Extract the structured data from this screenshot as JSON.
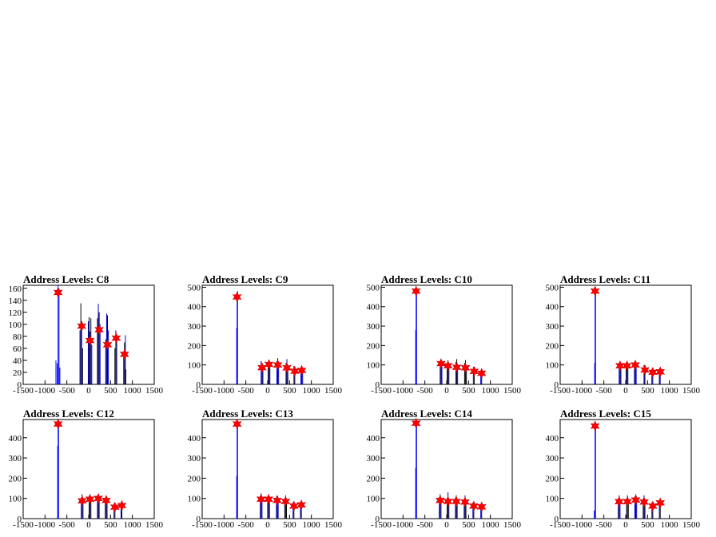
{
  "chart_data": [
    {
      "type": "histogram",
      "title": "Address Levels: C8",
      "xlim": [
        -1500,
        1500
      ],
      "ylim": [
        0,
        165
      ],
      "xticks": [
        "-1500",
        "-1000",
        "-500",
        "0",
        "500",
        "1000",
        "1500"
      ],
      "yticks": [
        "0",
        "20",
        "40",
        "60",
        "80",
        "100",
        "120",
        "140",
        "160"
      ],
      "peaks": [
        {
          "x": -700,
          "y": 153
        },
        {
          "x": -160,
          "y": 97
        },
        {
          "x": 30,
          "y": 73
        },
        {
          "x": 240,
          "y": 91
        },
        {
          "x": 430,
          "y": 66
        },
        {
          "x": 630,
          "y": 77
        },
        {
          "x": 820,
          "y": 50
        }
      ],
      "bars": [
        {
          "x": -750,
          "y": 40
        },
        {
          "x": -720,
          "y": 35
        },
        {
          "x": -700,
          "y": 165
        },
        {
          "x": -680,
          "y": 160
        },
        {
          "x": -660,
          "y": 28
        },
        {
          "x": -200,
          "y": 90
        },
        {
          "x": -180,
          "y": 135
        },
        {
          "x": -160,
          "y": 105
        },
        {
          "x": -140,
          "y": 60
        },
        {
          "x": -10,
          "y": 105
        },
        {
          "x": 10,
          "y": 112
        },
        {
          "x": 30,
          "y": 88
        },
        {
          "x": 50,
          "y": 110
        },
        {
          "x": 70,
          "y": 66
        },
        {
          "x": 200,
          "y": 110
        },
        {
          "x": 220,
          "y": 134
        },
        {
          "x": 240,
          "y": 120
        },
        {
          "x": 260,
          "y": 100
        },
        {
          "x": 390,
          "y": 75
        },
        {
          "x": 410,
          "y": 118
        },
        {
          "x": 430,
          "y": 115
        },
        {
          "x": 450,
          "y": 90
        },
        {
          "x": 600,
          "y": 60
        },
        {
          "x": 620,
          "y": 90
        },
        {
          "x": 640,
          "y": 72
        },
        {
          "x": 800,
          "y": 45
        },
        {
          "x": 820,
          "y": 70
        },
        {
          "x": 840,
          "y": 82
        },
        {
          "x": 850,
          "y": 25
        }
      ]
    },
    {
      "type": "histogram",
      "title": "Address Levels: C9",
      "xlim": [
        -1500,
        1500
      ],
      "ylim": [
        0,
        510
      ],
      "xticks": [
        "-1500",
        "-1000",
        "-500",
        "0",
        "500",
        "1000",
        "1500"
      ],
      "yticks": [
        "0",
        "100",
        "200",
        "300",
        "400",
        "500"
      ],
      "peaks": [
        {
          "x": -700,
          "y": 450
        },
        {
          "x": -130,
          "y": 86
        },
        {
          "x": 30,
          "y": 103
        },
        {
          "x": 230,
          "y": 100
        },
        {
          "x": 440,
          "y": 85
        },
        {
          "x": 620,
          "y": 68
        },
        {
          "x": 780,
          "y": 72
        }
      ],
      "bars": [
        {
          "x": -710,
          "y": 290
        },
        {
          "x": -700,
          "y": 470
        },
        {
          "x": -690,
          "y": 480
        },
        {
          "x": -150,
          "y": 120
        },
        {
          "x": -130,
          "y": 110
        },
        {
          "x": -110,
          "y": 80
        },
        {
          "x": 10,
          "y": 100
        },
        {
          "x": 30,
          "y": 125
        },
        {
          "x": 50,
          "y": 110
        },
        {
          "x": 210,
          "y": 120
        },
        {
          "x": 230,
          "y": 135
        },
        {
          "x": 250,
          "y": 100
        },
        {
          "x": 420,
          "y": 110
        },
        {
          "x": 440,
          "y": 130
        },
        {
          "x": 460,
          "y": 90
        },
        {
          "x": 600,
          "y": 95
        },
        {
          "x": 620,
          "y": 80
        },
        {
          "x": 760,
          "y": 80
        },
        {
          "x": 780,
          "y": 90
        },
        {
          "x": 800,
          "y": 60
        }
      ]
    },
    {
      "type": "histogram",
      "title": "Address Levels: C10",
      "xlim": [
        -1500,
        1500
      ],
      "ylim": [
        0,
        510
      ],
      "xticks": [
        "-1500",
        "-1000",
        "-500",
        "0",
        "500",
        "1000",
        "1500"
      ],
      "yticks": [
        "0",
        "100",
        "200",
        "300",
        "400",
        "500"
      ],
      "peaks": [
        {
          "x": -700,
          "y": 480
        },
        {
          "x": -130,
          "y": 107
        },
        {
          "x": 30,
          "y": 96
        },
        {
          "x": 230,
          "y": 88
        },
        {
          "x": 430,
          "y": 85
        },
        {
          "x": 630,
          "y": 67
        },
        {
          "x": 800,
          "y": 57
        }
      ],
      "bars": [
        {
          "x": -710,
          "y": 280
        },
        {
          "x": -700,
          "y": 500
        },
        {
          "x": -690,
          "y": 495
        },
        {
          "x": -150,
          "y": 115
        },
        {
          "x": -130,
          "y": 120
        },
        {
          "x": -110,
          "y": 95
        },
        {
          "x": 10,
          "y": 110
        },
        {
          "x": 30,
          "y": 125
        },
        {
          "x": 50,
          "y": 90
        },
        {
          "x": 210,
          "y": 115
        },
        {
          "x": 230,
          "y": 130
        },
        {
          "x": 250,
          "y": 105
        },
        {
          "x": 410,
          "y": 110
        },
        {
          "x": 430,
          "y": 125
        },
        {
          "x": 450,
          "y": 90
        },
        {
          "x": 610,
          "y": 90
        },
        {
          "x": 630,
          "y": 80
        },
        {
          "x": 780,
          "y": 70
        },
        {
          "x": 800,
          "y": 75
        }
      ]
    },
    {
      "type": "histogram",
      "title": "Address Levels: C11",
      "xlim": [
        -1500,
        1500
      ],
      "ylim": [
        0,
        510
      ],
      "xticks": [
        "-1500",
        "-1000",
        "-500",
        "0",
        "500",
        "1000",
        "1500"
      ],
      "yticks": [
        "0",
        "100",
        "200",
        "300",
        "400",
        "500"
      ],
      "peaks": [
        {
          "x": -700,
          "y": 480
        },
        {
          "x": -130,
          "y": 96
        },
        {
          "x": 30,
          "y": 96
        },
        {
          "x": 220,
          "y": 100
        },
        {
          "x": 440,
          "y": 74
        },
        {
          "x": 620,
          "y": 62
        },
        {
          "x": 790,
          "y": 65
        }
      ],
      "bars": [
        {
          "x": -710,
          "y": 110
        },
        {
          "x": -700,
          "y": 500
        },
        {
          "x": -690,
          "y": 490
        },
        {
          "x": -150,
          "y": 110
        },
        {
          "x": -130,
          "y": 108
        },
        {
          "x": -110,
          "y": 85
        },
        {
          "x": 10,
          "y": 100
        },
        {
          "x": 30,
          "y": 112
        },
        {
          "x": 50,
          "y": 90
        },
        {
          "x": 200,
          "y": 110
        },
        {
          "x": 220,
          "y": 115
        },
        {
          "x": 240,
          "y": 95
        },
        {
          "x": 420,
          "y": 100
        },
        {
          "x": 440,
          "y": 85
        },
        {
          "x": 600,
          "y": 80
        },
        {
          "x": 620,
          "y": 70
        },
        {
          "x": 770,
          "y": 75
        },
        {
          "x": 790,
          "y": 80
        }
      ]
    },
    {
      "type": "histogram",
      "title": "Address Levels: C12",
      "xlim": [
        -1500,
        1500
      ],
      "ylim": [
        0,
        490
      ],
      "xticks": [
        "-1500",
        "-1000",
        "-500",
        "0",
        "500",
        "1000",
        "1500"
      ],
      "yticks": [
        "0",
        "100",
        "200",
        "300",
        "400"
      ],
      "peaks": [
        {
          "x": -700,
          "y": 468
        },
        {
          "x": -150,
          "y": 88
        },
        {
          "x": 30,
          "y": 96
        },
        {
          "x": 220,
          "y": 100
        },
        {
          "x": 400,
          "y": 90
        },
        {
          "x": 600,
          "y": 57
        },
        {
          "x": 760,
          "y": 65
        }
      ],
      "bars": [
        {
          "x": -710,
          "y": 360
        },
        {
          "x": -700,
          "y": 490
        },
        {
          "x": -690,
          "y": 480
        },
        {
          "x": -170,
          "y": 100
        },
        {
          "x": -150,
          "y": 120
        },
        {
          "x": -130,
          "y": 85
        },
        {
          "x": 10,
          "y": 110
        },
        {
          "x": 30,
          "y": 120
        },
        {
          "x": 50,
          "y": 90
        },
        {
          "x": 200,
          "y": 110
        },
        {
          "x": 220,
          "y": 115
        },
        {
          "x": 240,
          "y": 100
        },
        {
          "x": 380,
          "y": 100
        },
        {
          "x": 400,
          "y": 115
        },
        {
          "x": 420,
          "y": 80
        },
        {
          "x": 580,
          "y": 75
        },
        {
          "x": 600,
          "y": 70
        },
        {
          "x": 740,
          "y": 70
        },
        {
          "x": 760,
          "y": 80
        }
      ]
    },
    {
      "type": "histogram",
      "title": "Address Levels: C13",
      "xlim": [
        -1500,
        1500
      ],
      "ylim": [
        0,
        490
      ],
      "xticks": [
        "-1500",
        "-1000",
        "-500",
        "0",
        "500",
        "1000",
        "1500"
      ],
      "yticks": [
        "0",
        "100",
        "200",
        "300",
        "400"
      ],
      "peaks": [
        {
          "x": -700,
          "y": 468
        },
        {
          "x": -150,
          "y": 96
        },
        {
          "x": 20,
          "y": 96
        },
        {
          "x": 220,
          "y": 90
        },
        {
          "x": 410,
          "y": 85
        },
        {
          "x": 600,
          "y": 62
        },
        {
          "x": 770,
          "y": 68
        }
      ],
      "bars": [
        {
          "x": -710,
          "y": 210
        },
        {
          "x": -700,
          "y": 490
        },
        {
          "x": -690,
          "y": 485
        },
        {
          "x": -170,
          "y": 110
        },
        {
          "x": -150,
          "y": 125
        },
        {
          "x": -130,
          "y": 100
        },
        {
          "x": 0,
          "y": 110
        },
        {
          "x": 20,
          "y": 120
        },
        {
          "x": 40,
          "y": 95
        },
        {
          "x": 200,
          "y": 110
        },
        {
          "x": 220,
          "y": 115
        },
        {
          "x": 240,
          "y": 95
        },
        {
          "x": 390,
          "y": 100
        },
        {
          "x": 410,
          "y": 115
        },
        {
          "x": 430,
          "y": 80
        },
        {
          "x": 580,
          "y": 80
        },
        {
          "x": 600,
          "y": 85
        },
        {
          "x": 750,
          "y": 75
        },
        {
          "x": 770,
          "y": 80
        }
      ]
    },
    {
      "type": "histogram",
      "title": "Address Levels: C14",
      "xlim": [
        -1500,
        1500
      ],
      "ylim": [
        0,
        490
      ],
      "xticks": [
        "-1500",
        "-1000",
        "-500",
        "0",
        "500",
        "1000",
        "1500"
      ],
      "yticks": [
        "0",
        "100",
        "200",
        "300",
        "400"
      ],
      "peaks": [
        {
          "x": -700,
          "y": 472
        },
        {
          "x": -150,
          "y": 90
        },
        {
          "x": 30,
          "y": 85
        },
        {
          "x": 220,
          "y": 85
        },
        {
          "x": 420,
          "y": 82
        },
        {
          "x": 620,
          "y": 62
        },
        {
          "x": 800,
          "y": 58
        }
      ],
      "bars": [
        {
          "x": -710,
          "y": 250
        },
        {
          "x": -700,
          "y": 490
        },
        {
          "x": -690,
          "y": 485
        },
        {
          "x": -170,
          "y": 105
        },
        {
          "x": -150,
          "y": 120
        },
        {
          "x": -130,
          "y": 95
        },
        {
          "x": 10,
          "y": 100
        },
        {
          "x": 30,
          "y": 130
        },
        {
          "x": 50,
          "y": 90
        },
        {
          "x": 200,
          "y": 105
        },
        {
          "x": 220,
          "y": 115
        },
        {
          "x": 240,
          "y": 90
        },
        {
          "x": 400,
          "y": 100
        },
        {
          "x": 420,
          "y": 115
        },
        {
          "x": 440,
          "y": 80
        },
        {
          "x": 600,
          "y": 80
        },
        {
          "x": 620,
          "y": 75
        },
        {
          "x": 780,
          "y": 70
        },
        {
          "x": 800,
          "y": 75
        }
      ]
    },
    {
      "type": "histogram",
      "title": "Address Levels: C15",
      "xlim": [
        -1500,
        1500
      ],
      "ylim": [
        0,
        490
      ],
      "xticks": [
        "-1500",
        "-1000",
        "-500",
        "0",
        "500",
        "1000",
        "1500"
      ],
      "yticks": [
        "0",
        "100",
        "200",
        "300",
        "400"
      ],
      "peaks": [
        {
          "x": -700,
          "y": 458
        },
        {
          "x": -150,
          "y": 84
        },
        {
          "x": 40,
          "y": 84
        },
        {
          "x": 230,
          "y": 92
        },
        {
          "x": 420,
          "y": 82
        },
        {
          "x": 620,
          "y": 62
        },
        {
          "x": 790,
          "y": 78
        }
      ],
      "bars": [
        {
          "x": -720,
          "y": 40
        },
        {
          "x": -700,
          "y": 480
        },
        {
          "x": -690,
          "y": 470
        },
        {
          "x": -170,
          "y": 100
        },
        {
          "x": -150,
          "y": 115
        },
        {
          "x": -130,
          "y": 90
        },
        {
          "x": 20,
          "y": 100
        },
        {
          "x": 40,
          "y": 115
        },
        {
          "x": 60,
          "y": 95
        },
        {
          "x": 210,
          "y": 110
        },
        {
          "x": 230,
          "y": 120
        },
        {
          "x": 250,
          "y": 90
        },
        {
          "x": 400,
          "y": 100
        },
        {
          "x": 420,
          "y": 115
        },
        {
          "x": 440,
          "y": 85
        },
        {
          "x": 600,
          "y": 80
        },
        {
          "x": 620,
          "y": 75
        },
        {
          "x": 770,
          "y": 80
        },
        {
          "x": 790,
          "y": 90
        }
      ]
    }
  ]
}
